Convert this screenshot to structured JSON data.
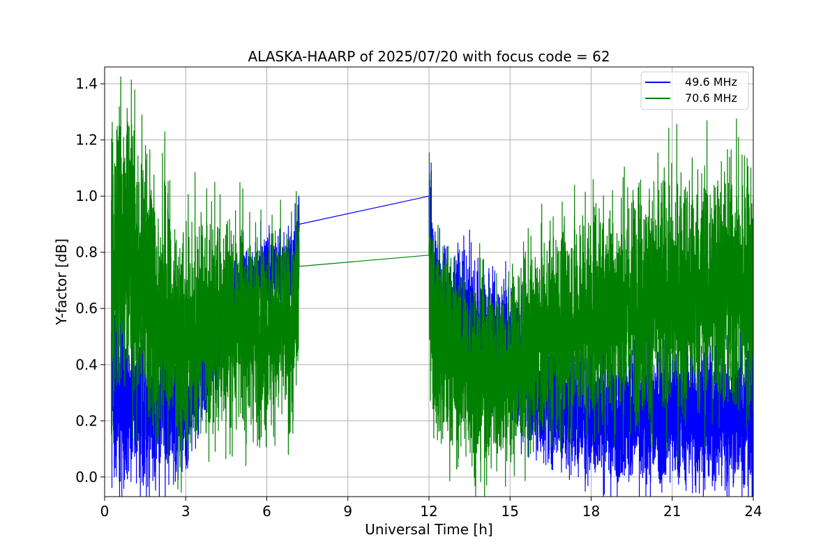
{
  "chart_data": {
    "type": "line",
    "title": "ALASKA-HAARP of 2025/07/20 with focus code = 62",
    "xlabel": "Universal Time [h]",
    "ylabel": "Y-factor [dB]",
    "xlim": [
      0,
      24
    ],
    "ylim": [
      -0.07,
      1.46
    ],
    "xticks": [
      0,
      3,
      6,
      9,
      12,
      15,
      18,
      21,
      24
    ],
    "xtick_labels": [
      "0",
      "3",
      "6",
      "9",
      "12",
      "15",
      "18",
      "21",
      "24"
    ],
    "yticks": [
      0.0,
      0.2,
      0.4,
      0.6,
      0.8,
      1.0,
      1.2,
      1.4
    ],
    "ytick_labels": [
      "0.0",
      "0.2",
      "0.4",
      "0.6",
      "0.8",
      "1.0",
      "1.2",
      "1.4"
    ],
    "grid": true,
    "legend_position": "top-right",
    "data_gap": [
      7.2,
      12.0
    ],
    "series": [
      {
        "name": "49.6 MHz",
        "color": "#0000ff",
        "points": [
          {
            "x": 0.25,
            "y": 0.35
          },
          {
            "x": 0.5,
            "y": 0.3
          },
          {
            "x": 1.0,
            "y": 0.26
          },
          {
            "x": 1.5,
            "y": 0.24
          },
          {
            "x": 2.0,
            "y": 0.25
          },
          {
            "x": 2.5,
            "y": 0.24
          },
          {
            "x": 3.0,
            "y": 0.26
          },
          {
            "x": 3.5,
            "y": 0.35
          },
          {
            "x": 4.0,
            "y": 0.45
          },
          {
            "x": 4.5,
            "y": 0.55
          },
          {
            "x": 5.0,
            "y": 0.65
          },
          {
            "x": 5.5,
            "y": 0.7
          },
          {
            "x": 6.0,
            "y": 0.72
          },
          {
            "x": 6.5,
            "y": 0.73
          },
          {
            "x": 7.0,
            "y": 0.75
          },
          {
            "x": 7.2,
            "y": 0.9
          },
          {
            "x": 12.0,
            "y": 1.0
          },
          {
            "x": 12.2,
            "y": 0.62
          },
          {
            "x": 13.0,
            "y": 0.58
          },
          {
            "x": 14.0,
            "y": 0.52
          },
          {
            "x": 15.0,
            "y": 0.45
          },
          {
            "x": 16.0,
            "y": 0.3
          },
          {
            "x": 17.0,
            "y": 0.24
          },
          {
            "x": 18.0,
            "y": 0.22
          },
          {
            "x": 19.0,
            "y": 0.22
          },
          {
            "x": 20.0,
            "y": 0.22
          },
          {
            "x": 21.0,
            "y": 0.23
          },
          {
            "x": 22.0,
            "y": 0.23
          },
          {
            "x": 23.0,
            "y": 0.22
          },
          {
            "x": 24.0,
            "y": 0.22
          }
        ],
        "noise": [
          {
            "x": 0.25,
            "y": 0.28
          },
          {
            "x": 3.0,
            "y": 0.2
          },
          {
            "x": 4.0,
            "y": 0.16
          },
          {
            "x": 5.5,
            "y": 0.12
          },
          {
            "x": 7.2,
            "y": 0.12
          },
          {
            "x": 12.0,
            "y": 0.22
          },
          {
            "x": 15.0,
            "y": 0.2
          },
          {
            "x": 16.0,
            "y": 0.2
          },
          {
            "x": 24.0,
            "y": 0.24
          }
        ]
      },
      {
        "name": "70.6 MHz",
        "color": "#008000",
        "points": [
          {
            "x": 0.25,
            "y": 0.8
          },
          {
            "x": 0.5,
            "y": 0.88
          },
          {
            "x": 1.0,
            "y": 0.78
          },
          {
            "x": 1.5,
            "y": 0.68
          },
          {
            "x": 2.0,
            "y": 0.6
          },
          {
            "x": 2.5,
            "y": 0.55
          },
          {
            "x": 3.0,
            "y": 0.5
          },
          {
            "x": 3.5,
            "y": 0.52
          },
          {
            "x": 4.0,
            "y": 0.55
          },
          {
            "x": 4.5,
            "y": 0.55
          },
          {
            "x": 5.0,
            "y": 0.55
          },
          {
            "x": 5.5,
            "y": 0.53
          },
          {
            "x": 6.0,
            "y": 0.52
          },
          {
            "x": 6.5,
            "y": 0.52
          },
          {
            "x": 7.0,
            "y": 0.52
          },
          {
            "x": 7.2,
            "y": 0.75
          },
          {
            "x": 12.0,
            "y": 0.79
          },
          {
            "x": 12.2,
            "y": 0.5
          },
          {
            "x": 13.0,
            "y": 0.42
          },
          {
            "x": 14.0,
            "y": 0.36
          },
          {
            "x": 15.0,
            "y": 0.38
          },
          {
            "x": 16.0,
            "y": 0.48
          },
          {
            "x": 17.0,
            "y": 0.54
          },
          {
            "x": 18.0,
            "y": 0.58
          },
          {
            "x": 19.0,
            "y": 0.6
          },
          {
            "x": 20.0,
            "y": 0.62
          },
          {
            "x": 21.0,
            "y": 0.64
          },
          {
            "x": 22.0,
            "y": 0.66
          },
          {
            "x": 23.0,
            "y": 0.67
          },
          {
            "x": 24.0,
            "y": 0.68
          }
        ],
        "noise": [
          {
            "x": 0.25,
            "y": 0.5
          },
          {
            "x": 1.5,
            "y": 0.42
          },
          {
            "x": 3.0,
            "y": 0.36
          },
          {
            "x": 7.2,
            "y": 0.3
          },
          {
            "x": 12.0,
            "y": 0.32
          },
          {
            "x": 15.0,
            "y": 0.3
          },
          {
            "x": 18.0,
            "y": 0.36
          },
          {
            "x": 24.0,
            "y": 0.42
          }
        ]
      }
    ]
  }
}
